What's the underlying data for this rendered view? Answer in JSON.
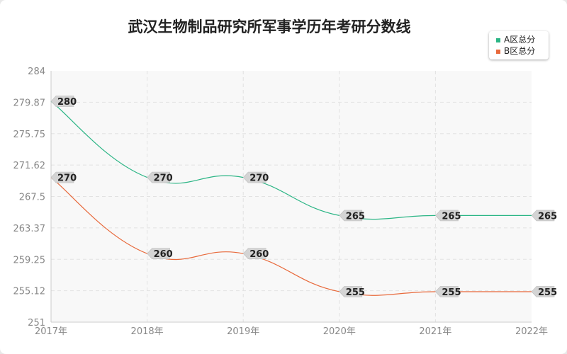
{
  "chart_data": {
    "type": "line",
    "title": "武汉生物制品研究所军事学历年考研分数线",
    "categories": [
      "2017年",
      "2018年",
      "2019年",
      "2020年",
      "2021年",
      "2022年"
    ],
    "yticks": [
      "284",
      "279.87",
      "275.75",
      "271.62",
      "267.5",
      "263.37",
      "259.25",
      "255.12",
      "251"
    ],
    "ylim": [
      251,
      284
    ],
    "grid": true,
    "legend_position": "top-right",
    "series": [
      {
        "name": "A区总分",
        "color": "#2bb585",
        "values": [
          280,
          270,
          270,
          265,
          265,
          265
        ]
      },
      {
        "name": "B区总分",
        "color": "#e8693b",
        "values": [
          270,
          260,
          260,
          255,
          255,
          255
        ]
      }
    ]
  }
}
